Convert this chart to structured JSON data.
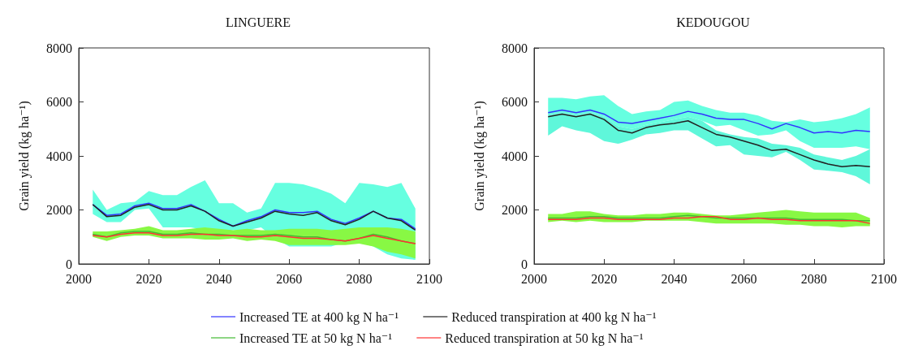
{
  "chart_data": [
    {
      "type": "line",
      "title": "LINGUERE",
      "ylabel": "Grain yield (kg ha⁻¹)",
      "xlim": [
        2000,
        2100
      ],
      "xticks": [
        2000,
        2020,
        2040,
        2060,
        2080,
        2100
      ],
      "ylim": [
        0,
        8000
      ],
      "yticks": [
        0,
        2000,
        4000,
        6000,
        8000
      ],
      "grid": false,
      "legend": "bottom",
      "marker": "none",
      "line_style": "solid",
      "x": [
        2004,
        2008,
        2012,
        2016,
        2020,
        2024,
        2028,
        2032,
        2036,
        2040,
        2044,
        2048,
        2052,
        2056,
        2060,
        2064,
        2068,
        2072,
        2076,
        2080,
        2084,
        2088,
        2092,
        2096
      ],
      "series": [
        {
          "name": "Increased TE at 400 kg N ha⁻¹",
          "color": "#3333ff",
          "values": [
            2200,
            1800,
            1850,
            2150,
            2250,
            2050,
            2050,
            2200,
            1950,
            1650,
            1400,
            1600,
            1750,
            2000,
            1900,
            1900,
            1950,
            1650,
            1500,
            1700,
            1950,
            1700,
            1650,
            1300
          ],
          "lower": [
            1850,
            1550,
            1550,
            2000,
            2050,
            1350,
            1350,
            1350,
            1250,
            1150,
            1250,
            1250,
            1350,
            950,
            650,
            650,
            650,
            650,
            800,
            800,
            650,
            350,
            200,
            150
          ],
          "upper": [
            2750,
            2000,
            2250,
            2300,
            2700,
            2550,
            2550,
            2850,
            3100,
            2250,
            2250,
            1900,
            2050,
            3000,
            3000,
            2950,
            2800,
            2600,
            2250,
            3000,
            2950,
            2850,
            3000,
            2050
          ]
        },
        {
          "name": "Reduced transpiration at 400 kg N ha⁻¹",
          "color": "#222222",
          "values": [
            2200,
            1750,
            1800,
            2100,
            2200,
            2000,
            2000,
            2150,
            1950,
            1600,
            1400,
            1550,
            1700,
            1950,
            1850,
            1800,
            1900,
            1600,
            1450,
            1650,
            1950,
            1700,
            1600,
            1250
          ]
        },
        {
          "name": "Increased TE at 50 kg N ha⁻¹",
          "color": "#44bb33",
          "values": [
            1100,
            1000,
            1150,
            1200,
            1200,
            1100,
            1100,
            1150,
            1100,
            1100,
            1050,
            1050,
            1050,
            1100,
            1050,
            1000,
            1000,
            900,
            850,
            950,
            1100,
            1000,
            850,
            750
          ],
          "lower": [
            1000,
            850,
            1000,
            1050,
            1050,
            950,
            950,
            950,
            900,
            900,
            950,
            850,
            900,
            850,
            700,
            700,
            700,
            700,
            700,
            750,
            650,
            450,
            350,
            200
          ],
          "upper": [
            1200,
            1200,
            1250,
            1300,
            1400,
            1250,
            1250,
            1300,
            1350,
            1300,
            1250,
            1300,
            1250,
            1250,
            1300,
            1300,
            1300,
            1250,
            1300,
            1350,
            1350,
            1350,
            1300,
            1200
          ]
        },
        {
          "name": "Reduced transpiration at 50 kg N ha⁻¹",
          "color": "#ff3333",
          "values": [
            1050,
            1000,
            1100,
            1150,
            1150,
            1050,
            1050,
            1100,
            1100,
            1050,
            1050,
            1000,
            1000,
            1050,
            1000,
            950,
            950,
            900,
            850,
            950,
            1050,
            950,
            850,
            750
          ]
        }
      ]
    },
    {
      "type": "line",
      "title": "KEDOUGOU",
      "ylabel": "Grain yield (kg ha⁻¹)",
      "xlim": [
        2000,
        2100
      ],
      "xticks": [
        2000,
        2020,
        2040,
        2060,
        2080,
        2100
      ],
      "ylim": [
        0,
        8000
      ],
      "yticks": [
        0,
        2000,
        4000,
        6000,
        8000
      ],
      "grid": false,
      "marker": "none",
      "line_style": "solid",
      "x": [
        2004,
        2008,
        2012,
        2016,
        2020,
        2024,
        2028,
        2032,
        2036,
        2040,
        2044,
        2048,
        2052,
        2056,
        2060,
        2064,
        2068,
        2072,
        2076,
        2080,
        2084,
        2088,
        2092,
        2096
      ],
      "series": [
        {
          "color": "#3333ff",
          "values": [
            5600,
            5700,
            5600,
            5700,
            5550,
            5250,
            5200,
            5300,
            5400,
            5500,
            5650,
            5550,
            5400,
            5350,
            5350,
            5200,
            5000,
            5200,
            5050,
            4850,
            4900,
            4850,
            4950,
            4900
          ],
          "lower": [
            5500,
            5600,
            5500,
            5600,
            5450,
            5100,
            5000,
            5150,
            5250,
            5350,
            5450,
            5300,
            5100,
            5150,
            4950,
            4750,
            4800,
            4950,
            4550,
            4300,
            4300,
            4300,
            4350,
            4250
          ],
          "upper": [
            6150,
            6150,
            6100,
            6200,
            6250,
            5850,
            5550,
            5650,
            5700,
            6000,
            6050,
            5850,
            5700,
            5600,
            5600,
            5500,
            5300,
            5250,
            5350,
            5250,
            5300,
            5400,
            5550,
            5800
          ]
        },
        {
          "color": "#222222",
          "values": [
            5450,
            5550,
            5450,
            5550,
            5350,
            4950,
            4850,
            5050,
            5150,
            5200,
            5300,
            5050,
            4800,
            4700,
            4550,
            4400,
            4200,
            4250,
            4050,
            3850,
            3700,
            3600,
            3650,
            3600
          ],
          "lower": [
            4750,
            5100,
            4950,
            4850,
            4550,
            4450,
            4600,
            4800,
            4850,
            4950,
            4950,
            4650,
            4350,
            4400,
            4050,
            4000,
            3950,
            4150,
            3850,
            3500,
            3450,
            3400,
            3250,
            2950
          ],
          "upper": [
            5500,
            5600,
            5500,
            5600,
            5450,
            5100,
            5000,
            5150,
            5250,
            5350,
            5450,
            5300,
            4950,
            4800,
            4700,
            4650,
            4450,
            4400,
            4300,
            4050,
            3950,
            3850,
            4000,
            4250
          ]
        },
        {
          "color": "#44bb33",
          "values": [
            1700,
            1700,
            1700,
            1750,
            1750,
            1700,
            1700,
            1700,
            1700,
            1750,
            1800,
            1750,
            1700,
            1700,
            1700,
            1700,
            1700,
            1700,
            1650,
            1650,
            1650,
            1650,
            1600,
            1600
          ],
          "lower": [
            1550,
            1600,
            1550,
            1600,
            1550,
            1550,
            1550,
            1600,
            1600,
            1600,
            1600,
            1550,
            1500,
            1500,
            1500,
            1500,
            1500,
            1450,
            1450,
            1400,
            1400,
            1350,
            1400,
            1400
          ],
          "upper": [
            1850,
            1850,
            1950,
            1950,
            1850,
            1800,
            1800,
            1850,
            1850,
            1900,
            1900,
            1850,
            1800,
            1800,
            1850,
            1900,
            1950,
            2000,
            1950,
            1900,
            1900,
            1900,
            1900,
            1700
          ]
        },
        {
          "color": "#ff3333",
          "values": [
            1650,
            1650,
            1650,
            1700,
            1700,
            1650,
            1650,
            1650,
            1650,
            1700,
            1700,
            1750,
            1750,
            1650,
            1650,
            1700,
            1650,
            1650,
            1600,
            1600,
            1600,
            1600,
            1600,
            1500
          ]
        }
      ]
    }
  ]
}
